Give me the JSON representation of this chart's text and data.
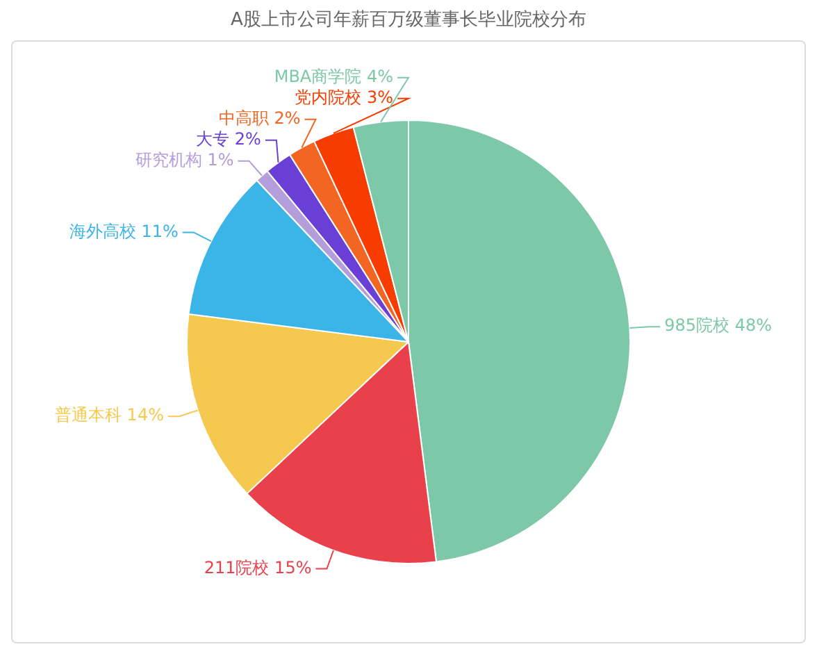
{
  "chart_data": {
    "type": "pie",
    "title": "A股上市公司年薪百万级董事长毕业院校分布",
    "categories": [
      "985院校",
      "211院校",
      "普通本科",
      "海外高校",
      "研究机构",
      "大专",
      "中高职",
      "党内院校",
      "MBA商学院"
    ],
    "values": [
      48,
      15,
      14,
      11,
      1,
      2,
      2,
      3,
      4
    ],
    "value_labels": [
      "48%",
      "15%",
      "14%",
      "11%",
      "1%",
      "2%",
      "2%",
      "3%",
      "4%"
    ],
    "colors": [
      "#7dc8a8",
      "#e8414c",
      "#f5c94f",
      "#3bb4e8",
      "#b39ddb",
      "#6a3fd6",
      "#f26522",
      "#f73c00",
      "#7dc8a8"
    ],
    "legend": false
  }
}
